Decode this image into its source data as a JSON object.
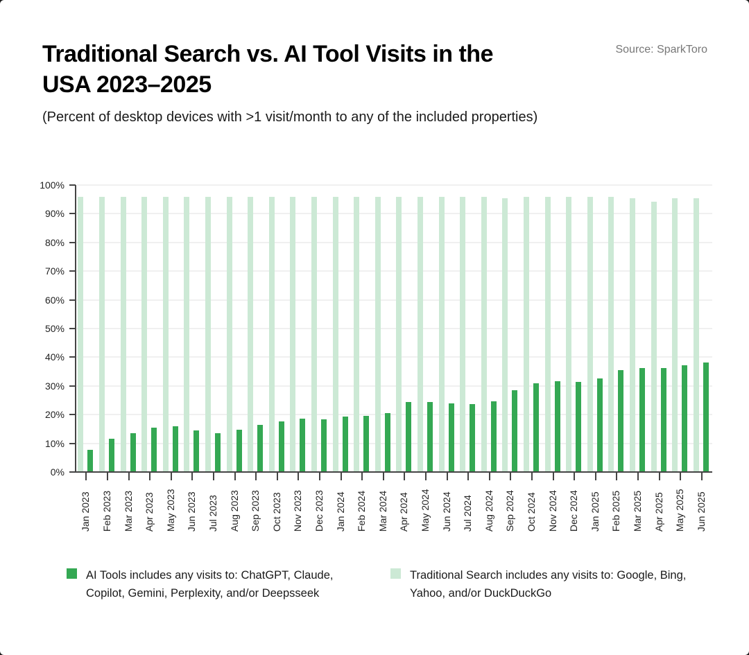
{
  "header": {
    "title": "Traditional Search vs. AI Tool Visits in the USA 2023–2025",
    "subtitle": "(Percent of desktop devices with >1 visit/month to any of the included properties)",
    "source": "Source: SparkToro"
  },
  "colors": {
    "ai_tools": "#34a853",
    "traditional_search": "#cce9d5",
    "axis": "#444444",
    "grid": "#f0f0f0"
  },
  "legend": [
    {
      "label": "AI Tools includes any visits to: ChatGPT, Claude, Copilot, Gemini, Perplexity, and/or Deepsseek",
      "color": "#34a853"
    },
    {
      "label": "Traditional Search includes any visits to: Google, Bing, Yahoo, and/or DuckDuckGo",
      "color": "#cce9d5"
    }
  ],
  "chart_data": {
    "type": "bar",
    "title": "Traditional Search vs. AI Tool Visits in the USA 2023–2025",
    "subtitle": "(Percent of desktop devices with >1 visit/month to any of the included properties)",
    "xlabel": "",
    "ylabel": "",
    "ylim": [
      0,
      100
    ],
    "yticks": [
      "0%",
      "10%",
      "20%",
      "30%",
      "40%",
      "50%",
      "60%",
      "70%",
      "80%",
      "90%",
      "100%"
    ],
    "grid": true,
    "legend_position": "bottom",
    "categories": [
      "Jan 2023",
      "Feb 2023",
      "Mar 2023",
      "Apr 2023",
      "May 2023",
      "Jun 2023",
      "Jul 2023",
      "Aug 2023",
      "Sep 2023",
      "Oct 2023",
      "Nov 2023",
      "Dec 2023",
      "Jan 2024",
      "Feb 2024",
      "Mar 2024",
      "Apr 2024",
      "May 2024",
      "Jun 2024",
      "Jul 2024",
      "Aug 2024",
      "Sep 2024",
      "Oct 2024",
      "Nov 2024",
      "Dec 2024",
      "Jan 2025",
      "Feb 2025",
      "Mar 2025",
      "Apr 2025",
      "May 2025",
      "Jun 2025"
    ],
    "series": [
      {
        "name": "Traditional Search includes any visits to: Google, Bing, Yahoo, and/or DuckDuckGo",
        "color": "#cce9d5",
        "values": [
          96,
          96,
          96,
          96,
          96,
          96,
          96,
          96,
          96,
          96,
          96,
          96,
          96,
          96,
          96,
          96,
          96,
          96,
          96,
          96,
          95.4,
          96,
          96,
          96,
          96,
          96,
          95.4,
          94.2,
          95.4,
          95.4
        ]
      },
      {
        "name": "AI Tools includes any visits to: ChatGPT, Claude, Copilot, Gemini, Perplexity, and/or Deepsseek",
        "color": "#34a853",
        "values": [
          7.8,
          11.7,
          13.6,
          15.5,
          16.0,
          14.6,
          13.6,
          14.8,
          16.5,
          17.6,
          18.6,
          18.4,
          19.3,
          19.6,
          20.5,
          24.4,
          24.4,
          23.9,
          23.7,
          24.6,
          28.5,
          30.9,
          31.6,
          31.4,
          32.6,
          35.5,
          36.2,
          36.2,
          37.2,
          38.2
        ]
      }
    ]
  }
}
